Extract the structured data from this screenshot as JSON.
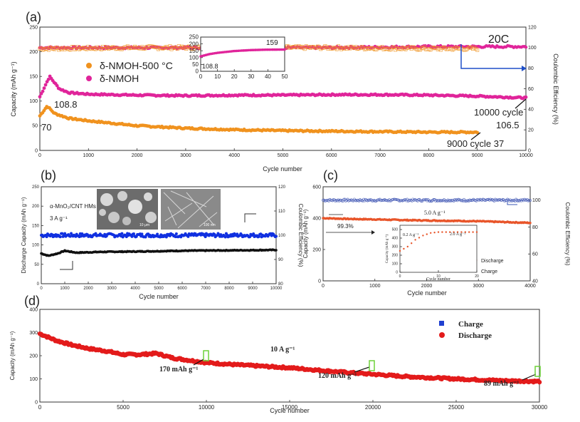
{
  "panels": {
    "a": {
      "label": "(a)",
      "xlabel": "Cycle number",
      "ylabel_left": "Capacity (mAh g⁻¹)",
      "ylabel_right": "Coulombic Efficiency (%)",
      "xlim": [
        0,
        10000
      ],
      "ylim": [
        0,
        250
      ],
      "y2lim": [
        0,
        120
      ],
      "xticks": [
        "0",
        "1000",
        "2000",
        "3000",
        "4000",
        "5000",
        "6000",
        "7000",
        "8000",
        "9000",
        "10000"
      ],
      "yticks": [
        "0",
        "50",
        "100",
        "150",
        "200",
        "250"
      ],
      "y2ticks": [
        "0",
        "20",
        "40",
        "60",
        "80",
        "100",
        "120"
      ],
      "legend": [
        "δ-NMOH-500 °C",
        "δ-NMOH"
      ],
      "rate_label": "20C",
      "annotations": {
        "start_pink": "108.8",
        "start_orange": "70",
        "end_pink": "10000 cycle",
        "end_pink_value": "106.5",
        "end_orange": "9000 cycle 37"
      },
      "inset": {
        "xticks": [
          "0",
          "10",
          "20",
          "30",
          "40",
          "50"
        ],
        "yticks": [
          "0",
          "50",
          "100",
          "150",
          "200",
          "250"
        ],
        "start_label": "108.8",
        "end_label": "159"
      }
    },
    "b": {
      "label": "(b)",
      "xlabel": "Cycle number",
      "ylabel_left": "Discharge Capacity (mAh g⁻¹)",
      "ylabel_right": "Coulombic Efficiency (%)",
      "xlim": [
        0,
        10000
      ],
      "ylim": [
        0,
        250
      ],
      "y2lim": [
        80,
        120
      ],
      "xticks": [
        "0",
        "1000",
        "2000",
        "3000",
        "4000",
        "5000",
        "6000",
        "7000",
        "8000",
        "9000",
        "10000"
      ],
      "yticks": [
        "0",
        "50",
        "100",
        "150",
        "200",
        "250"
      ],
      "y2ticks": [
        "80",
        "90",
        "100",
        "110",
        "120"
      ],
      "text_material": "α-MnO₂/CNT HMs",
      "text_rate": "3 A g⁻¹",
      "scale_bar_1": "10 μm",
      "scale_bar_2": "100 nm"
    },
    "c": {
      "label": "(c)",
      "xlabel": "Cycle number",
      "ylabel_left": "Capacity (mAh g⁻¹)",
      "ylabel_right": "Coulombic Efficiency (%)",
      "xlim": [
        0,
        4000
      ],
      "ylim": [
        0,
        600
      ],
      "y2lim": [
        40,
        110
      ],
      "xticks": [
        "0",
        "1000",
        "2000",
        "3000",
        "4000"
      ],
      "yticks": [
        "0",
        "200",
        "400",
        "600"
      ],
      "y2ticks": [
        "40",
        "60",
        "80",
        "100"
      ],
      "rate": "5.0 A g⁻¹",
      "retention": "99.3%",
      "legend": [
        "Discharge",
        "Charge"
      ],
      "inset": {
        "xlabel": "Cycle number",
        "ylabel": "Capacity (mAh g⁻¹)",
        "xticks": [
          "0",
          "10",
          "20"
        ],
        "yticks": [
          "0",
          "100",
          "200",
          "300",
          "400",
          "500"
        ],
        "label_low": "0.2 A g⁻¹",
        "label_high": "2.0 A g⁻¹"
      }
    },
    "d": {
      "label": "(d)",
      "xlabel": "Cycle number",
      "ylabel": "Capacity (mAh g⁻¹)",
      "xlim": [
        0,
        30000
      ],
      "ylim": [
        0,
        400
      ],
      "xticks": [
        "0",
        "5000",
        "10000",
        "15000",
        "20000",
        "25000",
        "30000"
      ],
      "yticks": [
        "0",
        "100",
        "200",
        "300",
        "400"
      ],
      "legend": [
        "Charge",
        "Discharge"
      ],
      "rate": "10 A g⁻¹",
      "annotations": [
        "170 mAh g⁻¹",
        "120 mAh g⁻¹",
        "89 mAh g⁻¹"
      ]
    }
  },
  "chart_data": [
    {
      "type": "scatter",
      "panel": "a",
      "title": "",
      "series": [
        {
          "name": "δ-NMOH capacity",
          "x": [
            0,
            200,
            400,
            600,
            1000,
            2000,
            3000,
            4000,
            5000,
            6000,
            7000,
            8000,
            9000,
            10000
          ],
          "y": [
            108.8,
            150,
            125,
            117,
            114,
            112,
            111,
            112,
            112,
            113,
            113,
            112,
            110,
            106.5
          ]
        },
        {
          "name": "δ-NMOH-500 °C capacity",
          "x": [
            0,
            150,
            300,
            600,
            1000,
            2000,
            3000,
            4000,
            5000,
            6000,
            7000,
            8000,
            9000
          ],
          "y": [
            70,
            90,
            75,
            65,
            60,
            50,
            45,
            42,
            40,
            39,
            38,
            37,
            37
          ]
        },
        {
          "name": "δ-NMOH Coulombic efficiency (%)",
          "x": [
            0,
            2000,
            4000,
            6000,
            8000,
            10000
          ],
          "y": [
            100,
            100,
            100,
            100,
            101,
            101
          ]
        },
        {
          "name": "δ-NMOH-500 °C Coulombic efficiency (%)",
          "x": [
            0,
            2000,
            4000,
            6000,
            8000,
            9000
          ],
          "y": [
            99,
            100,
            100,
            100,
            99,
            99
          ]
        }
      ]
    },
    {
      "type": "line",
      "panel": "a-inset",
      "series": [
        {
          "name": "δ-NMOH",
          "x": [
            0,
            5,
            10,
            20,
            30,
            40,
            50
          ],
          "y": [
            108.8,
            125,
            135,
            148,
            155,
            158,
            159
          ]
        }
      ]
    },
    {
      "type": "scatter",
      "panel": "b",
      "series": [
        {
          "name": "Discharge capacity",
          "x": [
            0,
            300,
            700,
            1000,
            1500,
            2500,
            4000,
            6000,
            8000,
            10000
          ],
          "y": [
            78,
            72,
            78,
            85,
            80,
            82,
            83,
            85,
            86,
            87
          ]
        },
        {
          "name": "Coulombic efficiency (%)",
          "x": [
            0,
            2000,
            4000,
            6000,
            8000,
            10000
          ],
          "y": [
            100,
            100,
            100,
            100,
            100,
            100
          ]
        }
      ]
    },
    {
      "type": "scatter",
      "panel": "c",
      "series": [
        {
          "name": "Discharge",
          "x": [
            0,
            500,
            1000,
            1500,
            2000,
            2500,
            3000,
            3500,
            4000
          ],
          "y": [
            400,
            395,
            392,
            388,
            385,
            383,
            380,
            375,
            370
          ]
        },
        {
          "name": "Charge (Coulombic efficiency %)",
          "x": [
            0,
            1000,
            2000,
            3000,
            4000
          ],
          "y": [
            100,
            100,
            100,
            100,
            100
          ]
        }
      ]
    },
    {
      "type": "line",
      "panel": "c-inset",
      "series": [
        {
          "name": "Capacity",
          "x": [
            0,
            2,
            4,
            6,
            8,
            10,
            12,
            14,
            16,
            18,
            20
          ],
          "y": [
            250,
            300,
            380,
            430,
            460,
            470,
            470,
            470,
            470,
            470,
            470
          ]
        }
      ]
    },
    {
      "type": "scatter",
      "panel": "d",
      "series": [
        {
          "name": "Discharge",
          "x": [
            0,
            1000,
            2000,
            3000,
            4000,
            5000,
            6000,
            7000,
            8000,
            10000,
            12000,
            15000,
            18000,
            20000,
            22000,
            25000,
            28000,
            30000
          ],
          "y": [
            295,
            265,
            245,
            230,
            220,
            205,
            205,
            210,
            190,
            170,
            160,
            148,
            130,
            120,
            110,
            100,
            92,
            89
          ]
        }
      ]
    }
  ]
}
